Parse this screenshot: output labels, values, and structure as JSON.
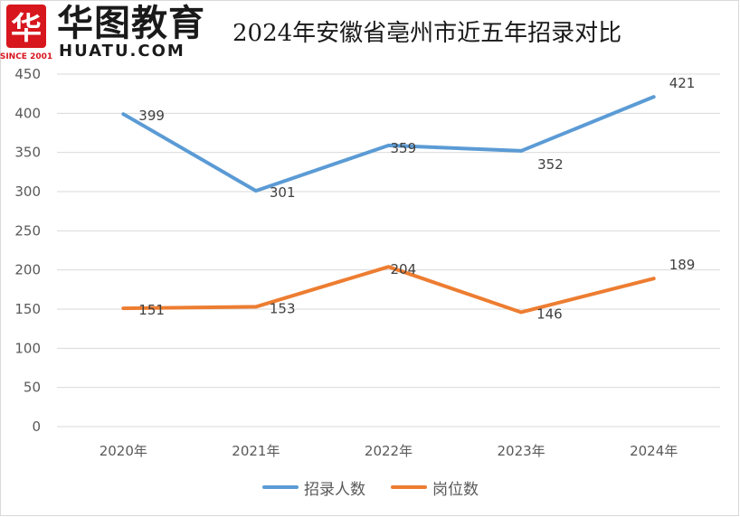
{
  "logo": {
    "badge_char": "华",
    "since": "SINCE 2001",
    "name_cn": "华图教育",
    "name_en": "HUATU.COM",
    "brand_color": "#d7161e"
  },
  "title": "2024年安徽省亳州市近五年招录对比",
  "chart_data": {
    "type": "line",
    "title": "2024年安徽省亳州市近五年招录对比",
    "categories": [
      "2020年",
      "2021年",
      "2022年",
      "2023年",
      "2024年"
    ],
    "series": [
      {
        "name": "招录人数",
        "color": "#5b9bd5",
        "values": [
          399,
          301,
          359,
          352,
          421
        ]
      },
      {
        "name": "岗位数",
        "color": "#ed7d31",
        "values": [
          151,
          153,
          204,
          146,
          189
        ]
      }
    ],
    "ylim": [
      0,
      450
    ],
    "yticks": [
      "0",
      "50",
      "100",
      "150",
      "200",
      "250",
      "300",
      "350",
      "400",
      "450"
    ],
    "grid": true,
    "legend": "bottom"
  }
}
